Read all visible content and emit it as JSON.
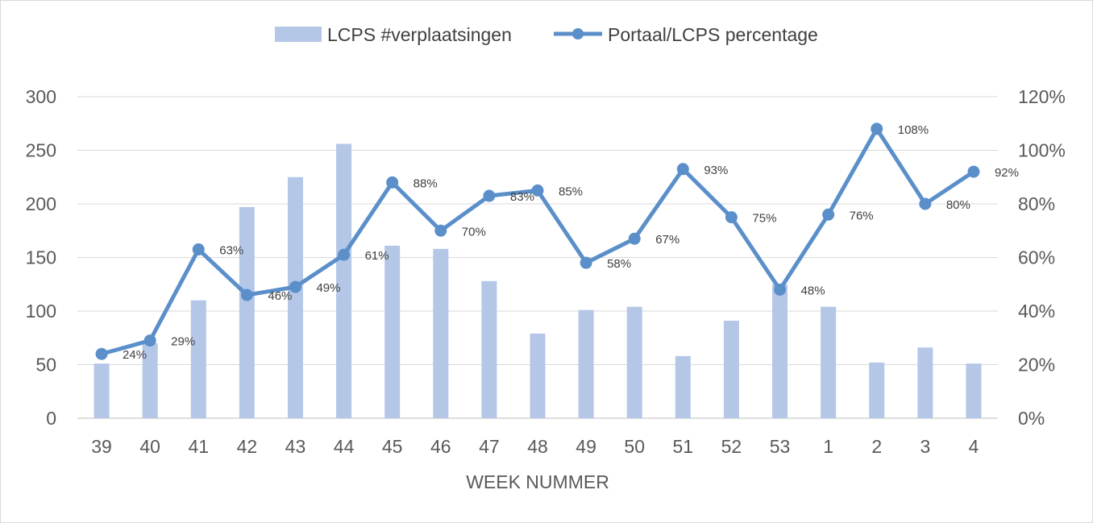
{
  "chart_data": {
    "type": "bar+line",
    "title": "",
    "xlabel": "WEEK NUMMER",
    "ylabel": "",
    "categories": [
      "39",
      "40",
      "41",
      "42",
      "43",
      "44",
      "45",
      "46",
      "47",
      "48",
      "49",
      "50",
      "51",
      "52",
      "53",
      "1",
      "2",
      "3",
      "4"
    ],
    "series": [
      {
        "name": "LCPS #verplaatsingen",
        "type": "bar",
        "axis": "left",
        "color": "#b4c7e7",
        "values": [
          51,
          70,
          110,
          197,
          225,
          256,
          161,
          158,
          128,
          79,
          101,
          104,
          58,
          91,
          125,
          104,
          52,
          66,
          51
        ]
      },
      {
        "name": "Portaal/LCPS percentage",
        "type": "line",
        "axis": "right",
        "color": "#5b8fca",
        "values": [
          24,
          29,
          63,
          46,
          49,
          61,
          88,
          70,
          83,
          85,
          58,
          67,
          93,
          75,
          48,
          76,
          108,
          80,
          92
        ],
        "labels": [
          "24%",
          "29%",
          "63%",
          "46%",
          "49%",
          "61%",
          "88%",
          "70%",
          "83%",
          "85%",
          "58%",
          "67%",
          "93%",
          "75%",
          "48%",
          "76%",
          "108%",
          "80%",
          "92%"
        ]
      }
    ],
    "y_left": {
      "lim": [
        0,
        300
      ],
      "ticks": [
        "0",
        "50",
        "100",
        "150",
        "200",
        "250",
        "300"
      ]
    },
    "y_right": {
      "lim": [
        0,
        120
      ],
      "ticks": [
        "0%",
        "20%",
        "40%",
        "60%",
        "80%",
        "100%",
        "120%"
      ]
    },
    "gridlines": true,
    "legend_position": "top"
  }
}
